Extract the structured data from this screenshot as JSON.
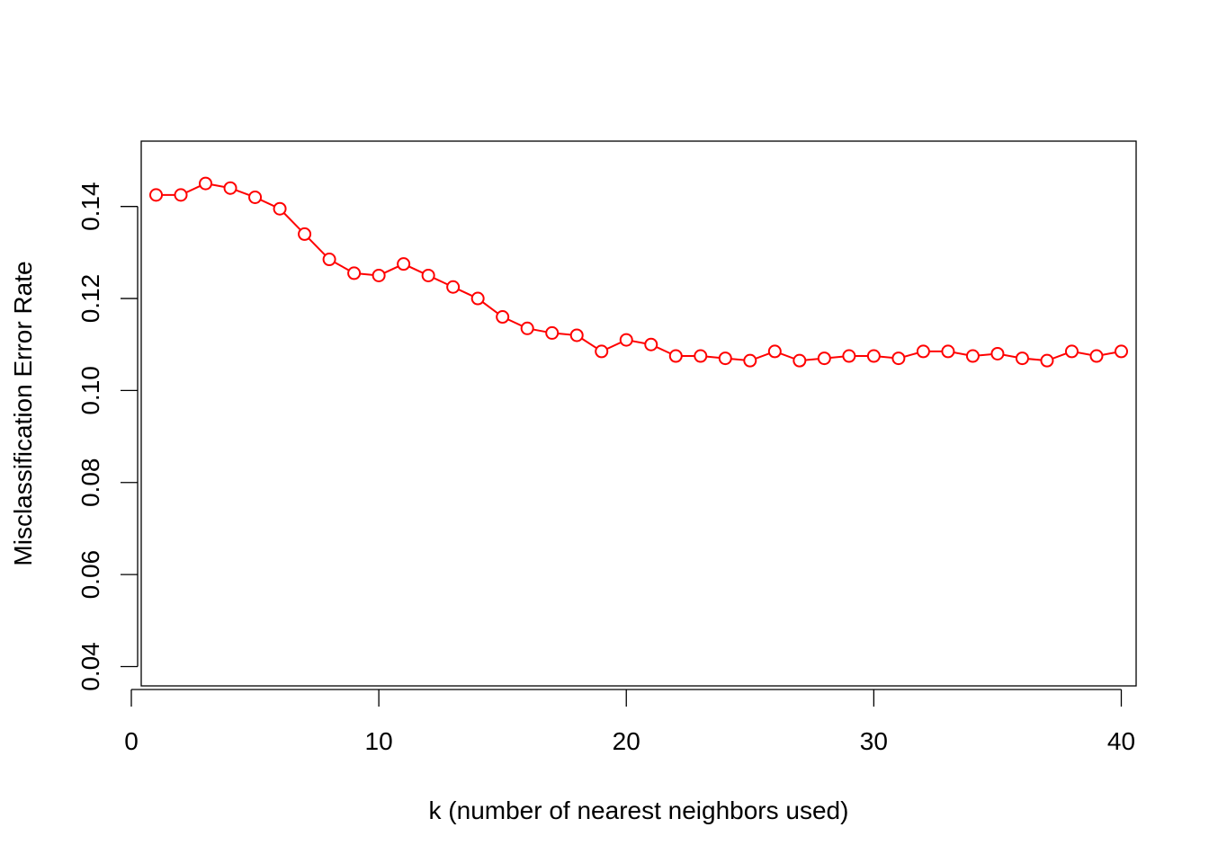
{
  "chart_data": {
    "type": "line",
    "title": "",
    "xlabel": "k (number of nearest neighbors used)",
    "ylabel": "Misclassification Error Rate",
    "xlim": [
      0.4,
      40.6
    ],
    "ylim": [
      0.0358,
      0.1542
    ],
    "x_ticks": [
      0,
      10,
      20,
      30,
      40
    ],
    "y_ticks": [
      0.04,
      0.06,
      0.08,
      0.1,
      0.12,
      0.14
    ],
    "x_tick_labels": [
      "0",
      "10",
      "20",
      "30",
      "40"
    ],
    "y_tick_labels": [
      "0.04",
      "0.06",
      "0.08",
      "0.10",
      "0.12",
      "0.14"
    ],
    "grid": false,
    "legend": "none",
    "series": [
      {
        "color": "#ff0000",
        "marker": "open-circle",
        "x": [
          1,
          2,
          3,
          4,
          5,
          6,
          7,
          8,
          9,
          10,
          11,
          12,
          13,
          14,
          15,
          16,
          17,
          18,
          19,
          20,
          21,
          22,
          23,
          24,
          25,
          26,
          27,
          28,
          29,
          30,
          31,
          32,
          33,
          34,
          35,
          36,
          37,
          38,
          39,
          40
        ],
        "values": [
          0.1425,
          0.1425,
          0.145,
          0.144,
          0.142,
          0.1395,
          0.134,
          0.1285,
          0.1255,
          0.125,
          0.1275,
          0.125,
          0.1225,
          0.12,
          0.116,
          0.1135,
          0.1125,
          0.112,
          0.1085,
          0.111,
          0.11,
          0.1075,
          0.1075,
          0.107,
          0.1065,
          0.1085,
          0.1065,
          0.107,
          0.1075,
          0.1075,
          0.107,
          0.1085,
          0.1085,
          0.1075,
          0.108,
          0.107,
          0.1065,
          0.1085,
          0.1075,
          0.1085
        ]
      }
    ]
  }
}
